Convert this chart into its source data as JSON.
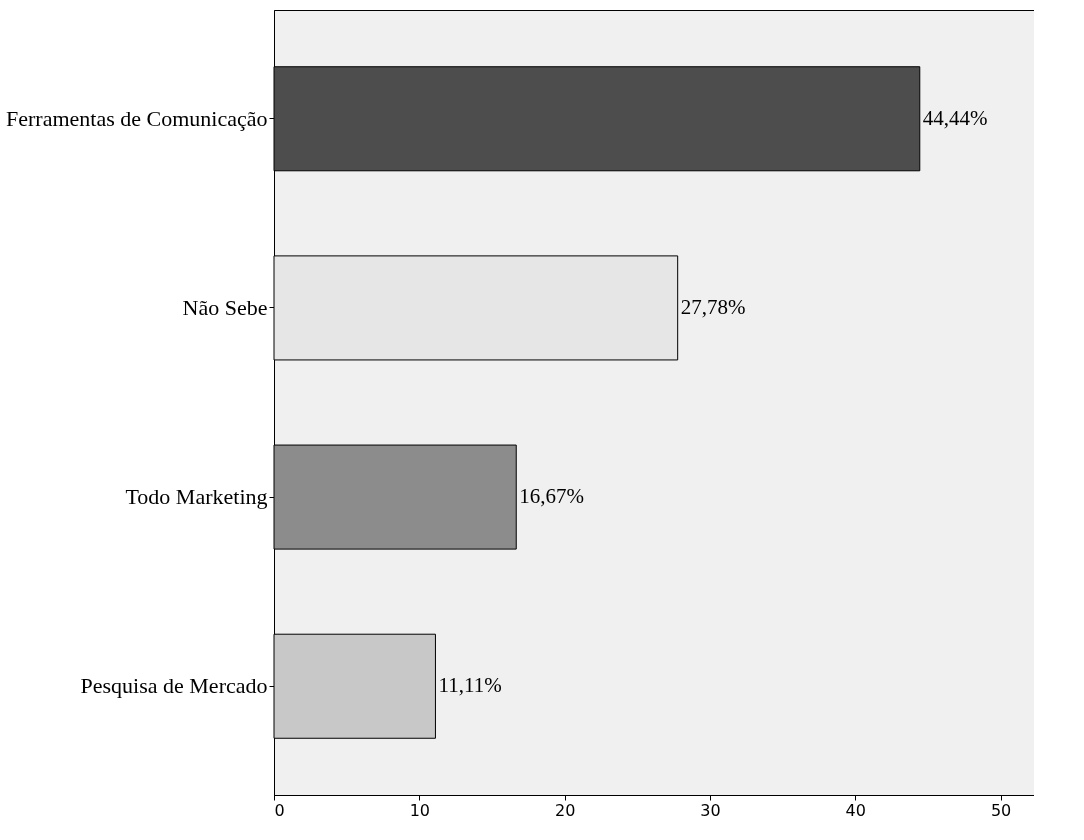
{
  "chart_data": {
    "type": "bar",
    "orientation": "horizontal",
    "categories": [
      "Ferramentas de Comunicação",
      "Não Sebe",
      "Todo Marketing",
      "Pesquisa de Mercado"
    ],
    "values": [
      44.44,
      27.78,
      16.67,
      11.11
    ],
    "colors": [
      "#4d4d4d",
      "#e6e6e6",
      "#8c8c8c",
      "#c8c8c8"
    ],
    "value_labels": [
      "44,44%",
      "27,78%",
      "16,67%",
      "11,11%"
    ],
    "xlim": [
      0,
      52.3
    ],
    "xticks": [
      0,
      10,
      20,
      30,
      40,
      50
    ]
  }
}
